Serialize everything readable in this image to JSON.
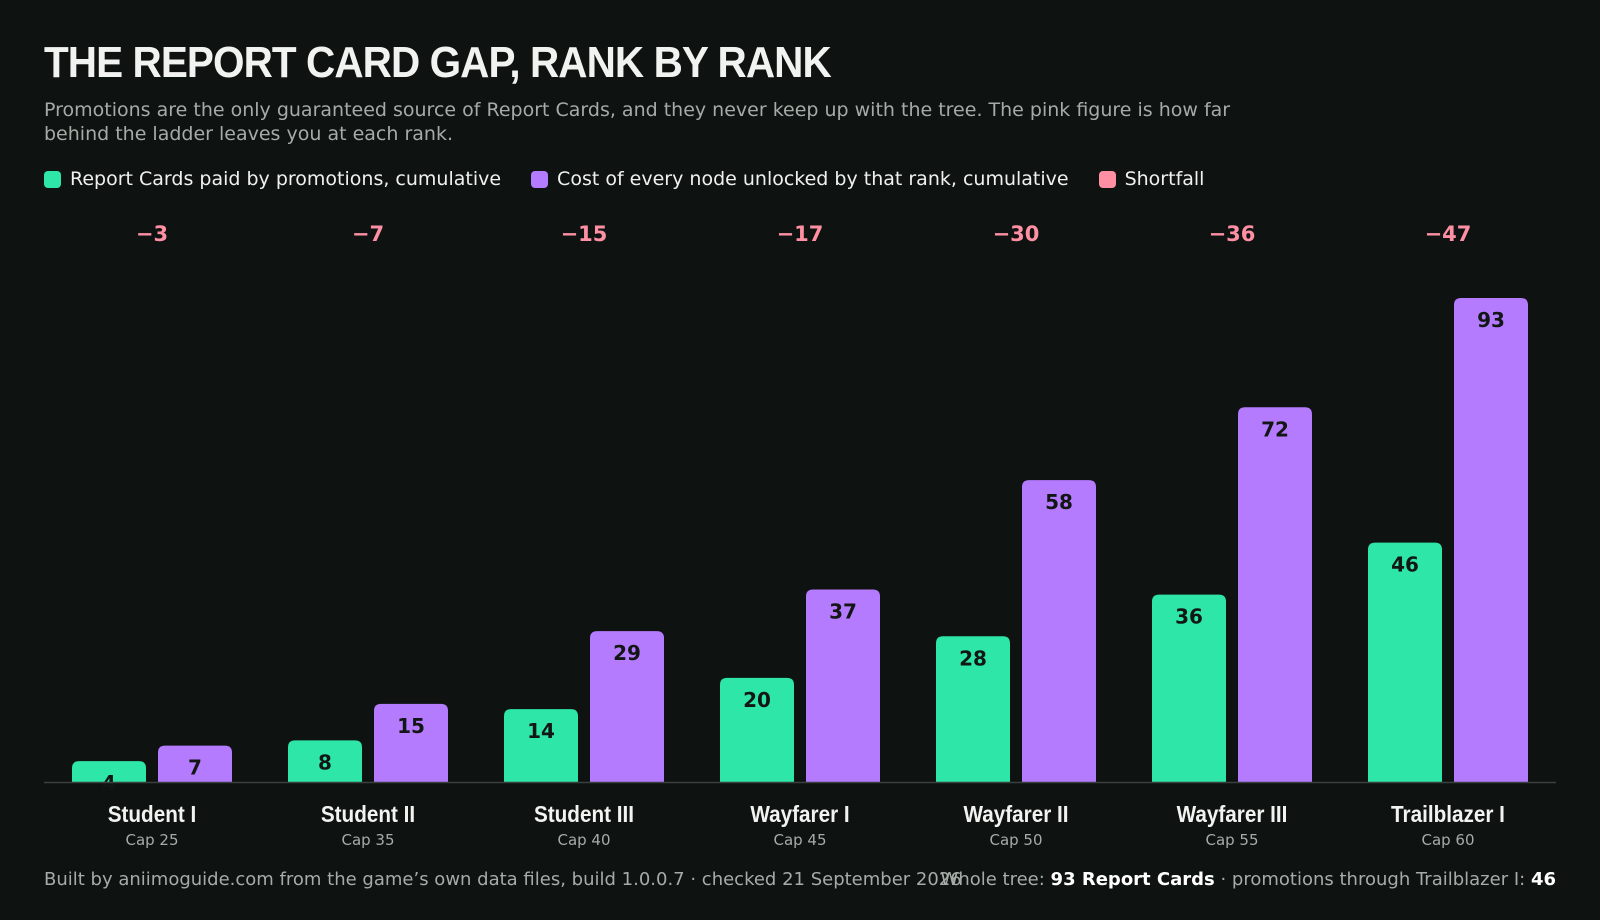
{
  "header": {
    "title": "THE REPORT CARD GAP, RANK BY RANK",
    "subtitle": "Promotions are the only guaranteed source of Report Cards, and they never keep up with the tree. The pink figure is how far behind the ladder leaves you at each rank."
  },
  "legend": {
    "items": [
      {
        "label": "Report Cards paid by promotions, cumulative",
        "color": "#2ee6a8"
      },
      {
        "label": "Cost of every node unlocked by that rank, cumulative",
        "color": "#b57bff"
      },
      {
        "label": "Shortfall",
        "color": "#ff8fa3"
      }
    ]
  },
  "chart_data": {
    "type": "bar",
    "title": "THE REPORT CARD GAP, RANK BY RANK",
    "categories": [
      "Student I",
      "Student II",
      "Student III",
      "Wayfarer I",
      "Wayfarer II",
      "Wayfarer III",
      "Trailblazer I"
    ],
    "sublabels": [
      "Cap 25",
      "Cap 35",
      "Cap 40",
      "Cap 45",
      "Cap 50",
      "Cap 55",
      "Cap 60"
    ],
    "series": [
      {
        "name": "Report Cards paid by promotions, cumulative",
        "color": "#2ee6a8",
        "values": [
          4,
          8,
          14,
          20,
          28,
          36,
          46
        ]
      },
      {
        "name": "Cost of every node unlocked by that rank, cumulative",
        "color": "#b57bff",
        "values": [
          7,
          15,
          29,
          37,
          58,
          72,
          93
        ]
      }
    ],
    "shortfall": {
      "name": "Shortfall",
      "color": "#ff8fa3",
      "labels": [
        "−3",
        "−7",
        "−15",
        "−17",
        "−30",
        "−36",
        "−47"
      ]
    },
    "ylim": [
      0,
      93
    ],
    "grid": false,
    "legend_position": "top-left"
  },
  "footer": {
    "left": "Built by aniimoguide.com from the game’s own data files, build 1.0.0.7 · checked 21 September 2026",
    "right_prefix": "Whole tree: ",
    "right_total": "93 Report Cards",
    "right_middle": " · promotions through Trailblazer I: ",
    "right_value": "46"
  }
}
